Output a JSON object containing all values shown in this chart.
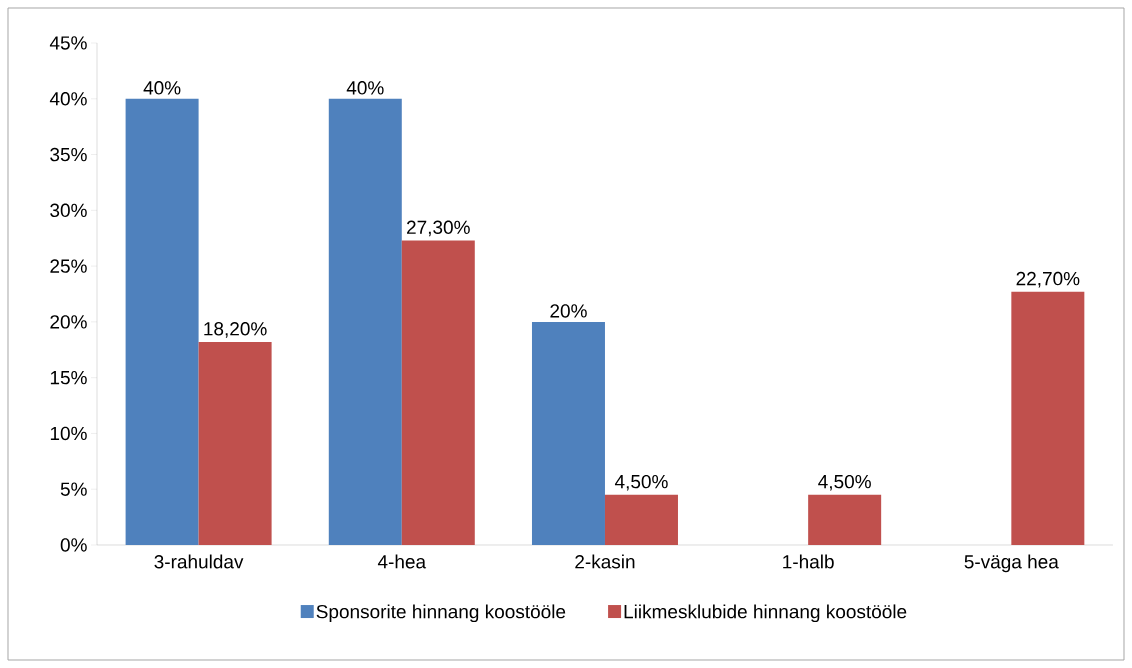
{
  "chart_data": {
    "type": "bar",
    "categories": [
      "3-rahuldav",
      "4-hea",
      "2-kasin",
      "1-halb",
      "5-väga hea"
    ],
    "series": [
      {
        "name": "Sponsorite hinnang koostööle",
        "color": "#4f81bd",
        "values": [
          40,
          40,
          20,
          null,
          null
        ],
        "value_labels": [
          "40%",
          "40%",
          "20%",
          null,
          null
        ]
      },
      {
        "name": "Liikmesklubide hinnang koostööle",
        "color": "#c0504d",
        "values": [
          18.2,
          27.3,
          4.5,
          4.5,
          22.7
        ],
        "value_labels": [
          "18,20%",
          "27,30%",
          "4,50%",
          "4,50%",
          "22,70%"
        ]
      }
    ],
    "ylim": [
      0,
      45
    ],
    "yticks": [
      {
        "value": 0,
        "label": "0%"
      },
      {
        "value": 5,
        "label": "5%"
      },
      {
        "value": 10,
        "label": "10%"
      },
      {
        "value": 15,
        "label": "15%"
      },
      {
        "value": 20,
        "label": "20%"
      },
      {
        "value": 25,
        "label": "25%"
      },
      {
        "value": 30,
        "label": "30%"
      },
      {
        "value": 35,
        "label": "35%"
      },
      {
        "value": 40,
        "label": "40%"
      },
      {
        "value": 45,
        "label": "45%"
      }
    ],
    "legend": "bottom"
  }
}
